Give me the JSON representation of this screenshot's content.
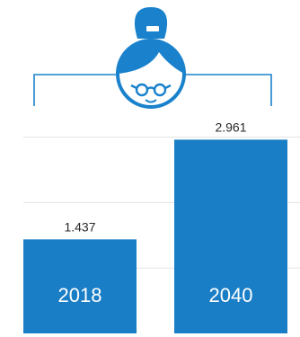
{
  "colors": {
    "accent": "#1a82cc",
    "bar": "#1a7ec6",
    "grid": "#e3e3e3",
    "label": "#2a2a2a",
    "bar_text": "#ffffff"
  },
  "illustration": {
    "icon": "grandmother-with-glasses-icon"
  },
  "chart_data": {
    "type": "bar",
    "title": "",
    "xlabel": "",
    "ylabel": "",
    "categories": [
      "2018",
      "2040"
    ],
    "values": [
      1.437,
      2.961
    ],
    "value_labels": [
      "1.437",
      "2.961"
    ],
    "ylim": [
      0,
      3.2
    ],
    "grid": true,
    "legend": "none"
  }
}
